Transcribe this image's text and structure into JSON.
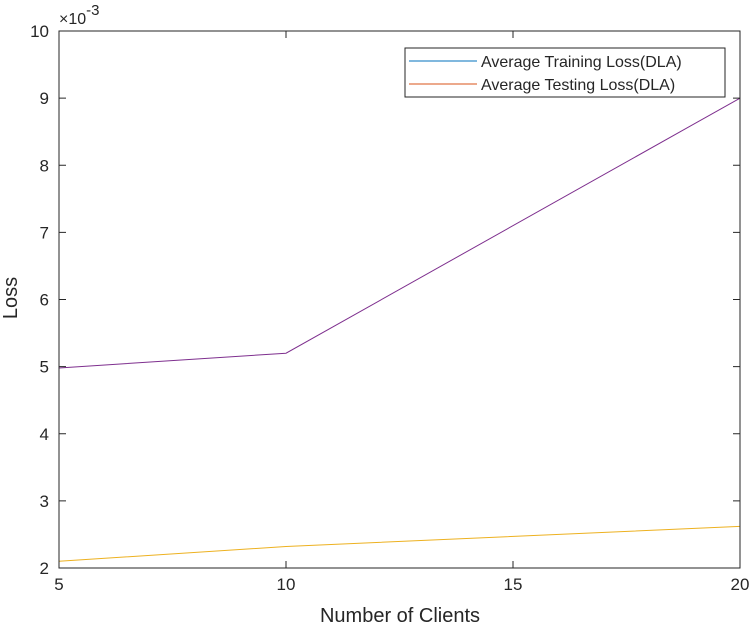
{
  "chart_data": {
    "type": "line",
    "title": "",
    "xlabel": "Number of Clients",
    "ylabel": "Loss",
    "y_scale_note": "×10^-3",
    "y_exponent_base": "×10",
    "y_exponent_power": "-3",
    "x": [
      5,
      10,
      20
    ],
    "xlim": [
      5,
      20
    ],
    "ylim": [
      2,
      10
    ],
    "xticks": [
      5,
      10,
      15,
      20
    ],
    "yticks": [
      2,
      3,
      4,
      5,
      6,
      7,
      8,
      9,
      10
    ],
    "grid": false,
    "legend_position": "top-right",
    "series": [
      {
        "name": "Average Training Loss(DLA)",
        "legend_color": "#0072BD",
        "color": "#7E2F8E",
        "values": [
          4.98,
          5.2,
          9.0
        ]
      },
      {
        "name": "Average Testing Loss(DLA)",
        "legend_color": "#D95319",
        "color": "#EDB120",
        "values": [
          2.1,
          2.32,
          2.62
        ]
      }
    ]
  }
}
